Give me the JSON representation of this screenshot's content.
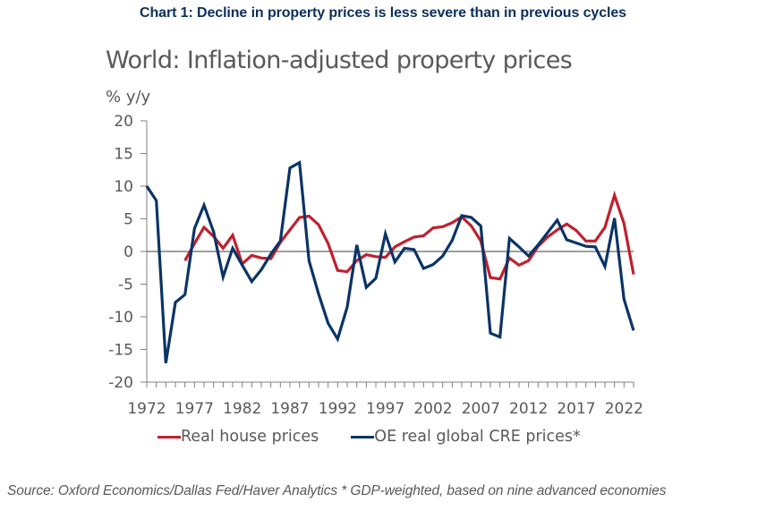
{
  "heading": "Chart 1: Decline in property prices is less severe than in previous cycles",
  "source": "Source: Oxford Economics/Dallas Fed/Haver Analytics * GDP-weighted, based on nine advanced economies",
  "colors": {
    "house": "#c0202e",
    "cre": "#0b3466",
    "axis": "#7f7f7f",
    "zero_line": "#404040"
  },
  "chart_data": {
    "type": "line",
    "title": "World: Inflation-adjusted property prices",
    "ylabel": "% y/y",
    "xlabel": "",
    "ylim": [
      -20,
      20
    ],
    "yticks": [
      20,
      15,
      10,
      5,
      0,
      -5,
      -10,
      -15,
      -20
    ],
    "xlim": [
      1972,
      2023
    ],
    "xtick_labels": [
      "1972",
      "1977",
      "1982",
      "1987",
      "1992",
      "1997",
      "2002",
      "2007",
      "2012",
      "2017",
      "2022"
    ],
    "grid": false,
    "legend_position": "bottom",
    "x": [
      1972,
      1973,
      1974,
      1975,
      1976,
      1977,
      1978,
      1979,
      1980,
      1981,
      1982,
      1983,
      1984,
      1985,
      1986,
      1987,
      1988,
      1989,
      1990,
      1991,
      1992,
      1993,
      1994,
      1995,
      1996,
      1997,
      1998,
      1999,
      2000,
      2001,
      2002,
      2003,
      2004,
      2005,
      2006,
      2007,
      2008,
      2009,
      2010,
      2011,
      2012,
      2013,
      2014,
      2015,
      2016,
      2017,
      2018,
      2019,
      2020,
      2021,
      2022,
      2023
    ],
    "series": [
      {
        "name": "Real house prices",
        "color_key": "house",
        "values": [
          null,
          null,
          null,
          null,
          -1.4,
          1.2,
          3.7,
          2.3,
          0.5,
          2.5,
          -1.9,
          -0.6,
          -1.0,
          -1.1,
          1.4,
          3.3,
          5.2,
          5.4,
          4.1,
          1.2,
          -2.9,
          -3.1,
          -1.4,
          -0.5,
          -0.8,
          -0.9,
          0.7,
          1.5,
          2.2,
          2.4,
          3.6,
          3.8,
          4.4,
          5.3,
          3.9,
          1.6,
          -4.0,
          -4.2,
          -1.0,
          -2.1,
          -1.4,
          0.8,
          2.2,
          3.3,
          4.2,
          3.2,
          1.6,
          1.6,
          3.7,
          8.6,
          4.3,
          -3.5
        ]
      },
      {
        "name": "OE real global CRE prices*",
        "color_key": "cre",
        "values": [
          10.0,
          7.8,
          -17.1,
          -7.8,
          -6.6,
          3.5,
          7.1,
          3.0,
          -3.9,
          0.5,
          -2.1,
          -4.6,
          -2.8,
          -0.4,
          1.6,
          12.8,
          13.6,
          -1.4,
          -6.5,
          -11.0,
          -13.4,
          -8.5,
          1.0,
          -5.5,
          -4.1,
          2.7,
          -1.6,
          0.5,
          0.3,
          -2.6,
          -2.0,
          -0.7,
          1.7,
          5.5,
          5.2,
          3.9,
          -12.5,
          -13.1,
          2.0,
          0.7,
          -0.7,
          1.0,
          2.9,
          4.8,
          1.8,
          1.3,
          0.8,
          0.7,
          -2.3,
          5.1,
          -7.3,
          -12.1
        ]
      }
    ]
  }
}
